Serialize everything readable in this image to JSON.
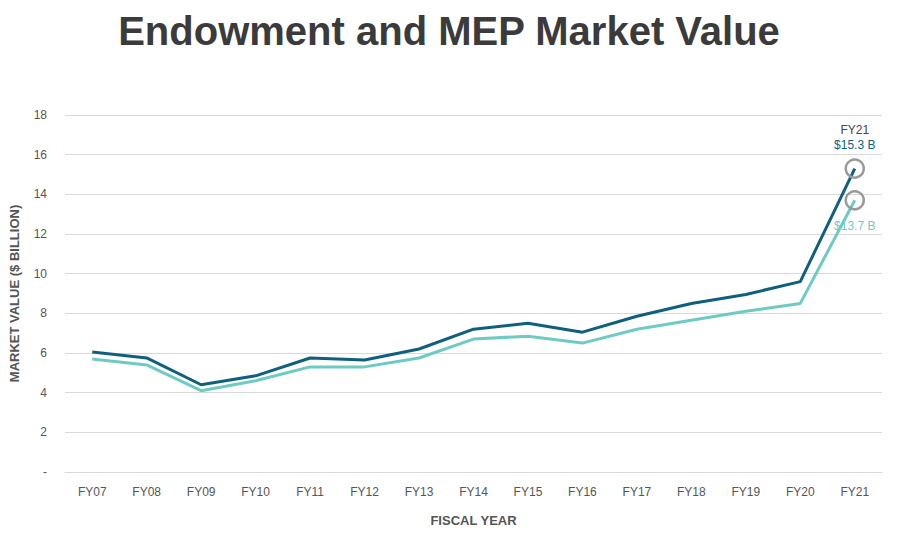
{
  "chart_data": {
    "type": "line",
    "title": "Endowment and MEP Market Value",
    "x_label": "FISCAL YEAR",
    "y_label": "MARKET VALUE ($ BILLION)",
    "categories": [
      "FY07",
      "FY08",
      "FY09",
      "FY10",
      "FY11",
      "FY12",
      "FY13",
      "FY14",
      "FY15",
      "FY16",
      "FY17",
      "FY18",
      "FY19",
      "FY20",
      "FY21"
    ],
    "series": [
      {
        "color": "#0f5f7f",
        "values": [
          6.05,
          5.75,
          4.4,
          4.85,
          5.75,
          5.65,
          6.2,
          7.2,
          7.5,
          7.05,
          7.85,
          8.5,
          8.95,
          9.6,
          15.3
        ],
        "value_labels": [
          null,
          null,
          null,
          null,
          null,
          null,
          null,
          null,
          null,
          null,
          null,
          null,
          null,
          null,
          "$15.3 B"
        ]
      },
      {
        "color": "#6dcbc4",
        "values": [
          5.7,
          5.4,
          4.1,
          4.6,
          5.3,
          5.3,
          5.75,
          6.7,
          6.85,
          6.5,
          7.2,
          7.65,
          8.1,
          8.5,
          13.7
        ],
        "value_labels": [
          null,
          null,
          null,
          null,
          null,
          null,
          null,
          null,
          null,
          null,
          null,
          null,
          null,
          null,
          "$13.7 B"
        ]
      }
    ],
    "annotations": [
      {
        "text": "FY21",
        "x": "FY21"
      }
    ],
    "ylim": [
      0,
      18
    ],
    "yticks": [
      {
        "value": 0,
        "label": "-"
      },
      2,
      4,
      6,
      8,
      10,
      12,
      14,
      16,
      18
    ],
    "grid": true
  }
}
